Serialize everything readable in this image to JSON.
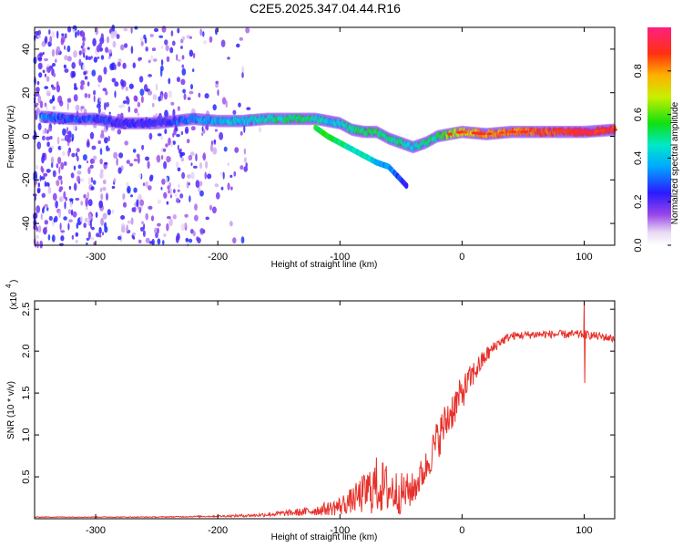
{
  "title": "C2E5.2025.347.04.44.R16",
  "chart_data": [
    {
      "type": "heatmap",
      "name": "spectrogram",
      "xlabel": "Height of straight line (km)",
      "ylabel": "Frequency (Hz)",
      "xlim": [
        -350,
        125
      ],
      "ylim": [
        -50,
        50
      ],
      "xticks": [
        -300,
        -200,
        -100,
        0,
        100
      ],
      "yticks": [
        -40,
        -20,
        0,
        20,
        40
      ],
      "colorbar": {
        "label": "Normalized spectral amplitude",
        "range": [
          0,
          1
        ],
        "ticks": [
          "0.0",
          "0.2",
          "0.4",
          "0.6",
          "0.8"
        ]
      },
      "ridge": {
        "description": "dominant frequency ridge vs height",
        "x": [
          -345,
          -320,
          -300,
          -280,
          -250,
          -220,
          -200,
          -180,
          -160,
          -140,
          -120,
          -110,
          -100,
          -90,
          -80,
          -70,
          -60,
          -50,
          -40,
          -30,
          -20,
          -10,
          0,
          20,
          40,
          60,
          80,
          100,
          125
        ],
        "y": [
          9,
          8,
          8,
          6,
          6,
          8,
          7,
          7,
          8,
          8,
          8,
          7,
          6,
          3,
          2,
          2,
          -1,
          -3,
          -5,
          -3,
          0,
          1,
          2,
          1,
          2,
          2,
          2,
          2,
          3
        ],
        "amplitude": [
          0.35,
          0.3,
          0.3,
          0.25,
          0.25,
          0.35,
          0.4,
          0.45,
          0.5,
          0.55,
          0.5,
          0.45,
          0.45,
          0.5,
          0.55,
          0.55,
          0.5,
          0.5,
          0.45,
          0.5,
          0.55,
          0.65,
          0.75,
          0.8,
          0.85,
          0.85,
          0.9,
          0.95,
          0.9
        ]
      },
      "branch": {
        "description": "secondary descending branch",
        "x": [
          -120,
          -110,
          -100,
          -90,
          -80,
          -70,
          -60,
          -50,
          -45
        ],
        "y": [
          4,
          0,
          -3,
          -6,
          -9,
          -12,
          -14,
          -20,
          -23
        ],
        "amplitude": [
          0.5,
          0.5,
          0.45,
          0.4,
          0.4,
          0.35,
          0.3,
          0.2,
          0.15
        ]
      }
    },
    {
      "type": "line",
      "name": "snr",
      "xlabel": "Height of straight line (km)",
      "ylabel": "SNR (10 * v/v)",
      "yscale_note": "(x10",
      "yscale_exp": "4",
      "xlim": [
        -350,
        125
      ],
      "ylim": [
        0,
        2.6
      ],
      "xticks": [
        -300,
        -200,
        -100,
        0,
        100
      ],
      "yticks": [
        0.5,
        1.0,
        1.5,
        2.0,
        2.5
      ],
      "color": "#e8302a",
      "series": [
        {
          "name": "SNR",
          "x": [
            -350,
            -300,
            -250,
            -200,
            -170,
            -150,
            -130,
            -110,
            -100,
            -90,
            -80,
            -70,
            -60,
            -50,
            -40,
            -30,
            -20,
            -10,
            0,
            10,
            20,
            30,
            40,
            60,
            80,
            100,
            125
          ],
          "y": [
            0.02,
            0.02,
            0.02,
            0.03,
            0.04,
            0.06,
            0.08,
            0.12,
            0.15,
            0.22,
            0.3,
            0.4,
            0.35,
            0.3,
            0.35,
            0.6,
            0.95,
            1.25,
            1.5,
            1.75,
            1.95,
            2.1,
            2.18,
            2.2,
            2.2,
            2.2,
            2.15
          ],
          "noise": [
            0.005,
            0.005,
            0.005,
            0.01,
            0.02,
            0.03,
            0.05,
            0.08,
            0.12,
            0.15,
            0.25,
            0.35,
            0.3,
            0.25,
            0.2,
            0.2,
            0.25,
            0.25,
            0.2,
            0.15,
            0.1,
            0.06,
            0.05,
            0.05,
            0.05,
            0.05,
            0.05
          ]
        }
      ],
      "annotations": [
        {
          "x": 100,
          "y": 2.58,
          "label": "spike"
        },
        {
          "x": 100,
          "y": 1.62,
          "label": "dip"
        }
      ]
    }
  ]
}
